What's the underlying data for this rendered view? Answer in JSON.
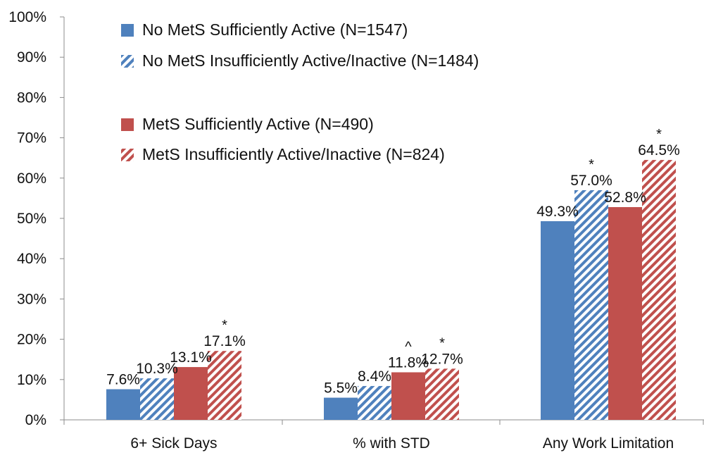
{
  "chart_data": {
    "type": "bar",
    "categories": [
      "6+ Sick Days",
      "% with STD",
      "Any Work Limitation"
    ],
    "ylim": [
      0,
      100
    ],
    "y_ticks": [
      "0%",
      "10%",
      "20%",
      "30%",
      "40%",
      "50%",
      "60%",
      "70%",
      "80%",
      "90%",
      "100%"
    ],
    "grid": false,
    "legend_position": "top-left",
    "series": [
      {
        "name": "No MetS Sufficiently Active (N=1547)",
        "values": [
          7.6,
          5.5,
          49.3
        ],
        "labels": [
          "7.6%",
          "5.5%",
          "49.3%"
        ],
        "marks": [
          "",
          "",
          ""
        ],
        "color": "#4F81BD",
        "pattern": "solid"
      },
      {
        "name": "No MetS Insufficiently Active/Inactive (N=1484)",
        "values": [
          10.3,
          8.4,
          57.0
        ],
        "labels": [
          "10.3%",
          "8.4%",
          "57.0%"
        ],
        "marks": [
          "",
          "",
          "*"
        ],
        "color": "#4F81BD",
        "pattern": "hatched"
      },
      {
        "name": "MetS Sufficiently Active (N=490)",
        "values": [
          13.1,
          11.8,
          52.8
        ],
        "labels": [
          "13.1%",
          "11.8%",
          "52.8%"
        ],
        "marks": [
          "",
          "^",
          ""
        ],
        "color": "#C0504D",
        "pattern": "solid"
      },
      {
        "name": "MetS Insufficiently Active/Inactive (N=824)",
        "values": [
          17.1,
          12.7,
          64.5
        ],
        "labels": [
          "17.1%",
          "12.7%",
          "64.5%"
        ],
        "marks": [
          "*",
          "*",
          "*"
        ],
        "color": "#C0504D",
        "pattern": "hatched"
      }
    ]
  }
}
